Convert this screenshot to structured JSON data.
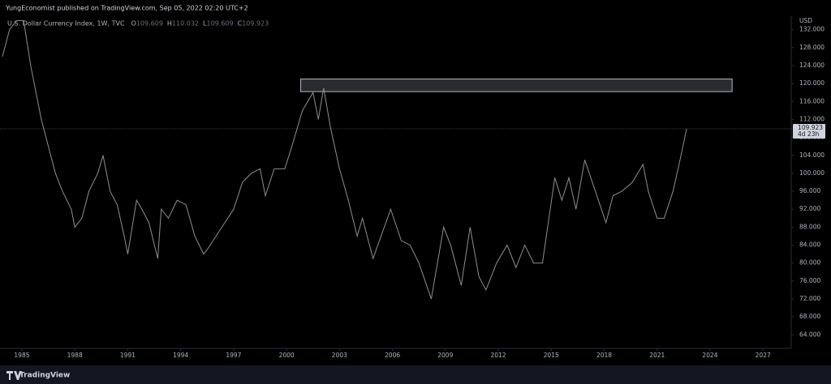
{
  "header": "YungEconomist published on TradingView.com, Sep 05, 2022 02:20 UTC+2",
  "footer": "TradingView",
  "chart_data": {
    "type": "line",
    "legend_title": "U.S. Dollar Currency Index, 1W, TVC",
    "ohlc": [
      {
        "label": "O",
        "value": "109.609"
      },
      {
        "label": "H",
        "value": "110.032"
      },
      {
        "label": "L",
        "value": "109.609"
      },
      {
        "label": "C",
        "value": "109.923"
      }
    ],
    "y_axis_unit": "USD",
    "price_label": {
      "value": 109.923,
      "countdown": "4d 23h"
    },
    "zone": {
      "x": [
        2000.8,
        2025.25
      ],
      "y": [
        118.2,
        121
      ]
    },
    "x": [
      1983.9,
      1984.3,
      1984.7,
      1985.1,
      1985.5,
      1985.8,
      1986.1,
      1986.5,
      1986.9,
      1987.3,
      1987.8,
      1988.0,
      1988.4,
      1988.8,
      1989.3,
      1989.6,
      1990.0,
      1990.4,
      1990.8,
      1991.0,
      1991.5,
      1991.8,
      1992.2,
      1992.7,
      1992.9,
      1993.3,
      1993.8,
      1994.3,
      1994.8,
      1995.3,
      1995.5,
      1996.0,
      1996.5,
      1997.0,
      1997.5,
      1998.0,
      1998.5,
      1998.8,
      1999.3,
      1999.9,
      2000.3,
      2000.9,
      2001.5,
      2001.8,
      2002.1,
      2002.5,
      2003.0,
      2003.5,
      2004.0,
      2004.3,
      2004.9,
      2005.9,
      2006.5,
      2007.0,
      2007.5,
      2008.2,
      2008.9,
      2009.3,
      2009.9,
      2010.4,
      2010.9,
      2011.3,
      2011.9,
      2012.5,
      2013.0,
      2013.5,
      2014.0,
      2014.5,
      2015.2,
      2015.6,
      2016.0,
      2016.4,
      2016.9,
      2017.5,
      2018.1,
      2018.5,
      2019.0,
      2019.6,
      2020.2,
      2020.5,
      2021.0,
      2021.4,
      2021.9,
      2022.3,
      2022.67
    ],
    "series": [
      {
        "name": "U.S. Dollar Currency Index",
        "color": "#8f8f8f",
        "values": [
          126,
          132,
          134,
          134,
          124,
          118,
          112,
          106,
          100,
          96,
          92,
          88,
          90,
          96,
          100,
          104,
          96,
          93,
          86,
          82,
          94,
          92,
          89,
          81,
          92,
          90,
          94,
          93,
          86,
          82,
          83,
          86,
          89,
          92,
          98,
          100,
          101,
          95,
          101,
          101,
          106,
          114,
          118,
          112,
          119,
          110,
          101,
          94,
          86,
          90,
          81,
          92,
          85,
          84,
          80,
          72,
          88,
          84,
          75,
          88,
          77,
          74,
          80,
          84,
          79,
          84,
          80,
          80,
          99,
          94,
          99,
          92,
          103,
          96,
          89,
          95,
          96,
          98,
          102,
          96,
          90,
          90,
          96,
          103,
          109.923
        ]
      }
    ],
    "xlim": [
      1983.76,
      2028.6
    ],
    "ylim": [
      61,
      135
    ],
    "xticks": [
      1985,
      1988,
      1991,
      1994,
      1997,
      2000,
      2003,
      2006,
      2009,
      2012,
      2015,
      2018,
      2021,
      2024,
      2027
    ],
    "yticks": [
      {
        "value": 64,
        "label": "64.000"
      },
      {
        "value": 68,
        "label": "68.000"
      },
      {
        "value": 72,
        "label": "72.000"
      },
      {
        "value": 76,
        "label": "76.000"
      },
      {
        "value": 80,
        "label": "80.000"
      },
      {
        "value": 84,
        "label": "84.000"
      },
      {
        "value": 88,
        "label": "88.000"
      },
      {
        "value": 92,
        "label": "92.000"
      },
      {
        "value": 96,
        "label": "96.000"
      },
      {
        "value": 100,
        "label": "100.000"
      },
      {
        "value": 104,
        "label": "104.000"
      },
      {
        "value": 108,
        "label": "108.000"
      },
      {
        "value": 112,
        "label": "112.000"
      },
      {
        "value": 116,
        "label": "116.000"
      },
      {
        "value": 120,
        "label": "120.000"
      },
      {
        "value": 124,
        "label": "124.000"
      },
      {
        "value": 128,
        "label": "128.000"
      },
      {
        "value": 132,
        "label": "132.000"
      }
    ],
    "grid": false
  }
}
